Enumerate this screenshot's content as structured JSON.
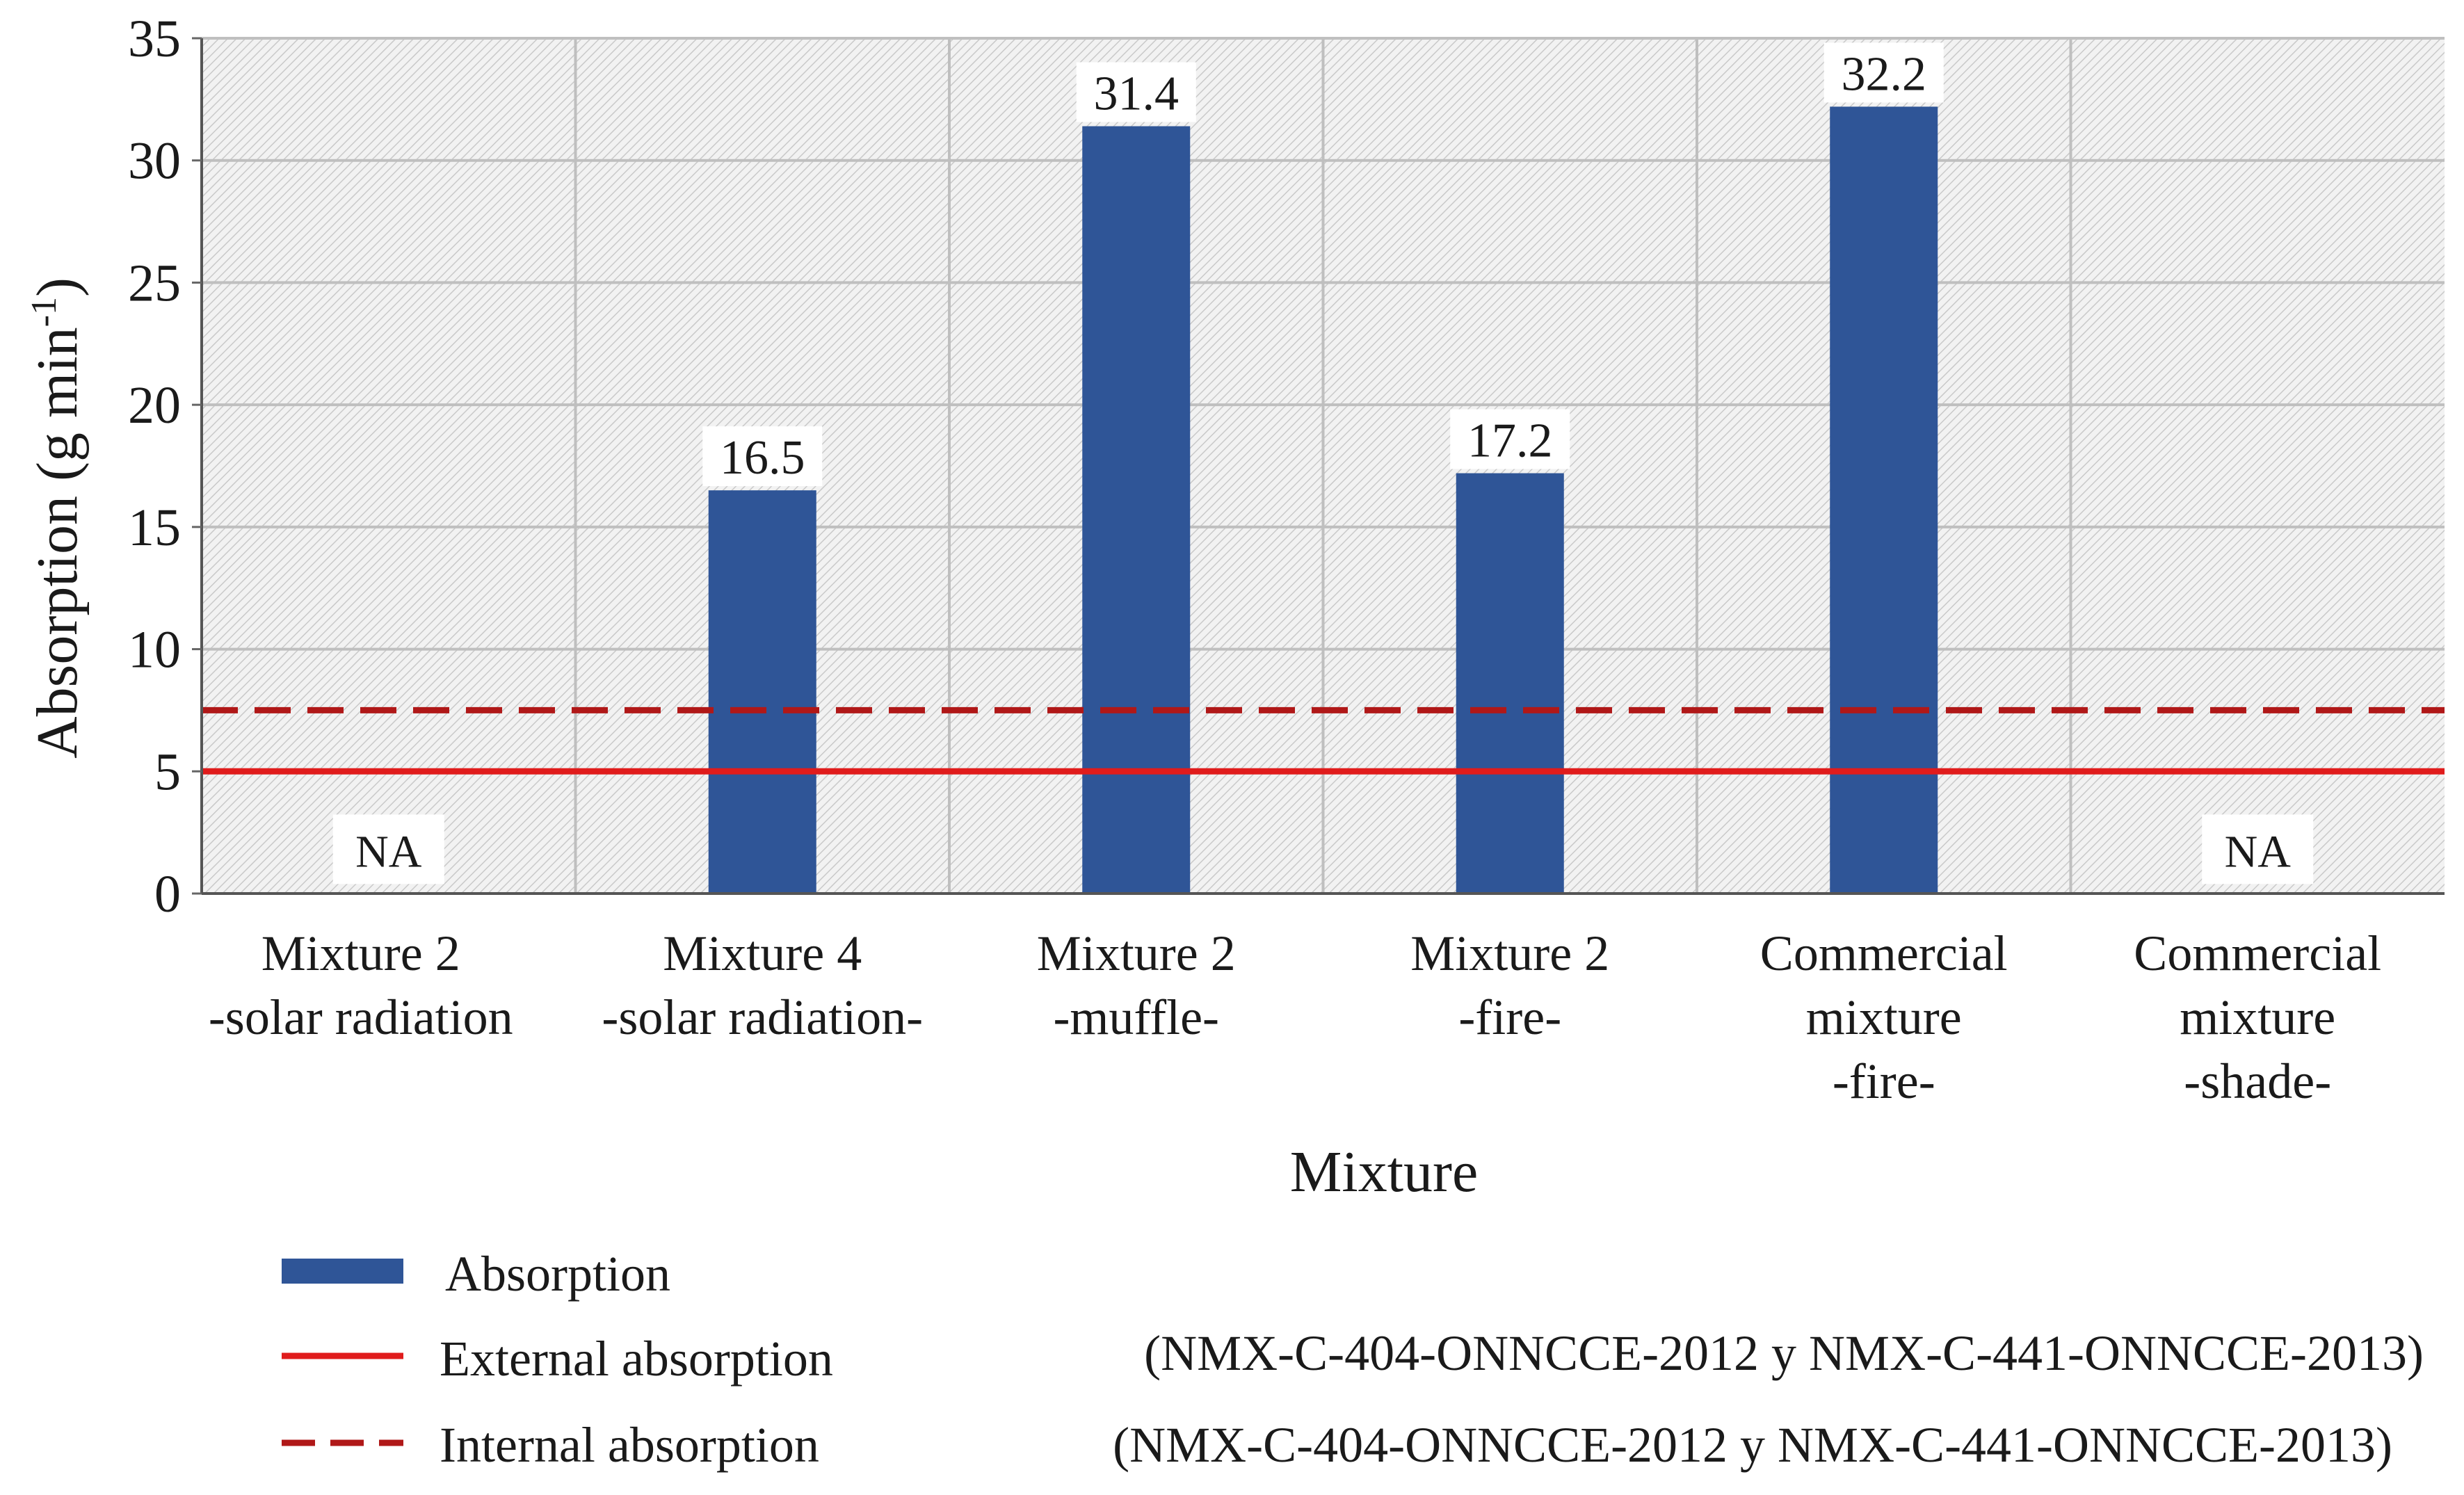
{
  "chart_data": {
    "type": "bar",
    "title": "",
    "xlabel": "Mixture",
    "ylabel_main": "Absorption (g min",
    "ylabel_sup": "-1",
    "ylabel_close": ")",
    "ylim": [
      0,
      35
    ],
    "yticks": [
      0,
      5,
      10,
      15,
      20,
      25,
      30,
      35
    ],
    "grid": true,
    "categories": [
      [
        "Mixture 2",
        "-solar radiation"
      ],
      [
        "Mixture 4",
        "-solar radiation-"
      ],
      [
        "Mixture 2",
        "-muffle-"
      ],
      [
        "Mixture 2",
        "-fire-"
      ],
      [
        "Commercial",
        "mixture",
        "-fire-"
      ],
      [
        "Commercial",
        "mixture",
        "-shade-"
      ]
    ],
    "series": [
      {
        "name": "Absorption",
        "color": "#2f5597",
        "values": [
          null,
          16.5,
          31.4,
          17.2,
          32.2,
          null
        ],
        "value_labels": [
          "NA",
          "16.5",
          "31.4",
          "17.2",
          "32.2",
          "NA"
        ]
      }
    ],
    "reference_lines": [
      {
        "name": "External absorption",
        "standard": "(NMX-C-404-ONNCCE-2012 y NMX-C-441-ONNCCE-2013)",
        "value": 5,
        "style": "solid",
        "color": "#e01c1c"
      },
      {
        "name": "Internal absorption",
        "standard": "(NMX-C-404-ONNCCE-2012 y NMX-C-441-ONNCCE-2013)",
        "value": 7.5,
        "style": "dashed",
        "color": "#b01818"
      }
    ],
    "legend": {
      "placement": "bottom-left"
    }
  }
}
